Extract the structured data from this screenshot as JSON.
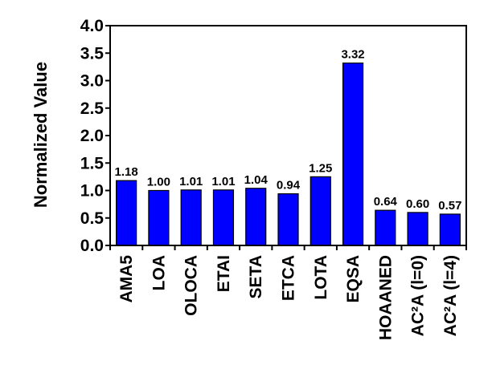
{
  "chart_data": {
    "type": "bar",
    "title": "",
    "xlabel": "",
    "ylabel": "Normalized Value",
    "ylim": [
      0,
      4
    ],
    "y_ticks": [
      "0.0",
      "0.5",
      "1.0",
      "1.5",
      "2.0",
      "2.5",
      "3.0",
      "3.5",
      "4.0"
    ],
    "grid": false,
    "categories": [
      "AMA5",
      "LOA",
      "OLOCA",
      "ETAI",
      "SETA",
      "ETCA",
      "LOTA",
      "EQSA",
      "HOAANED",
      "AC²A (l=0)",
      "AC²A (l=4)"
    ],
    "values": [
      1.18,
      1.0,
      1.01,
      1.01,
      1.04,
      0.94,
      1.25,
      3.32,
      0.64,
      0.6,
      0.57
    ],
    "data_labels": [
      "1.18",
      "1.00",
      "1.01",
      "1.01",
      "1.04",
      "0.94",
      "1.25",
      "3.32",
      "0.64",
      "0.60",
      "0.57"
    ],
    "bar_color": "#0000FF",
    "bar_edge_color": "#000000"
  }
}
